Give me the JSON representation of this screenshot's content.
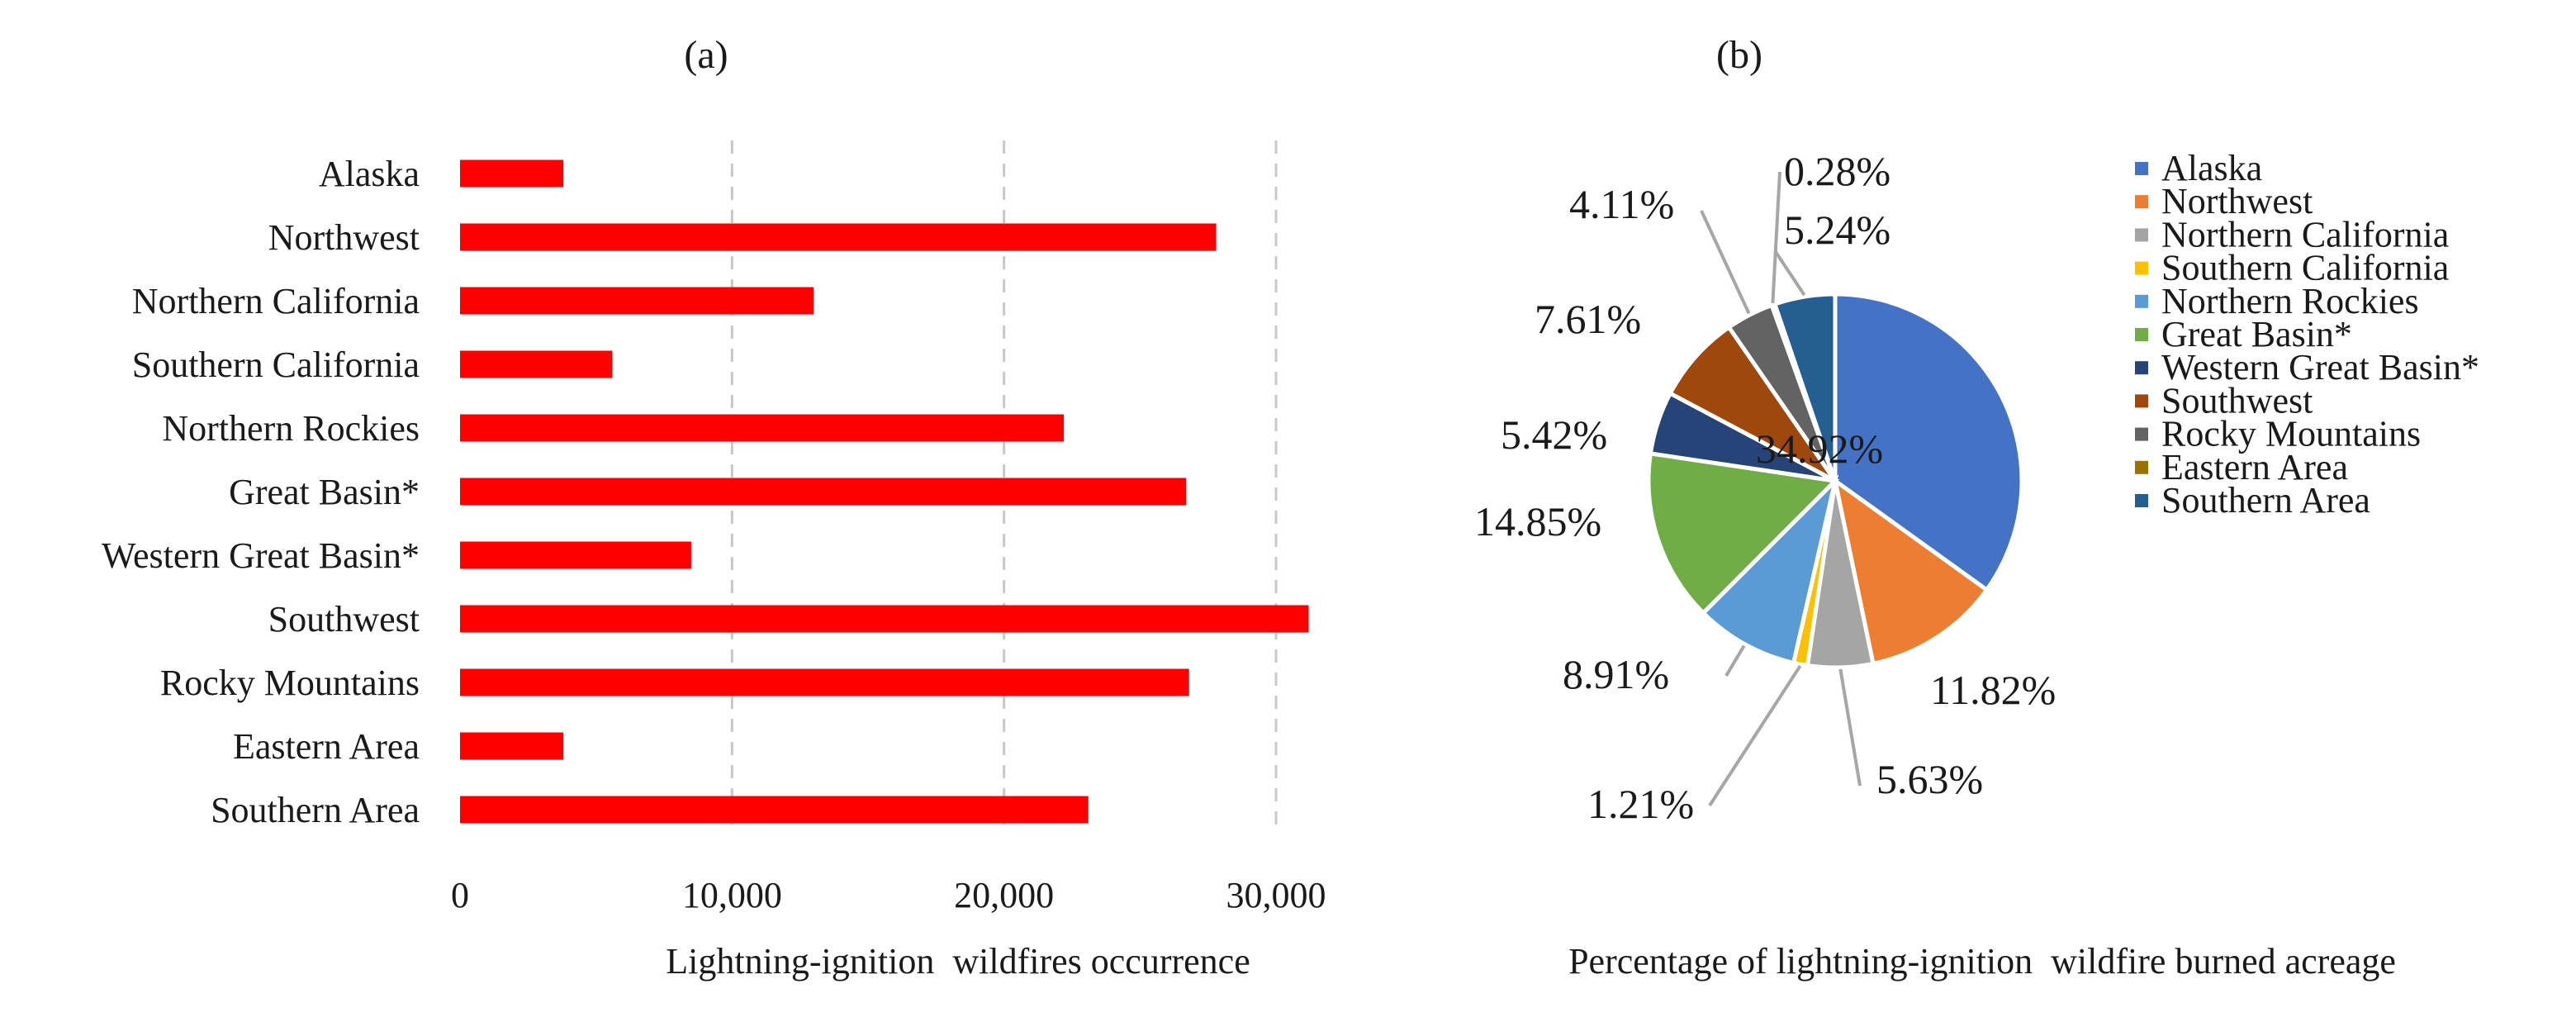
{
  "chart_data": [
    {
      "panel": "(a)",
      "type": "bar",
      "orientation": "horizontal",
      "categories": [
        "Alaska",
        "Northwest",
        "Northern California",
        "Southern California",
        "Northern Rockies",
        "Great Basin*",
        "Western Great Basin*",
        "Southwest",
        "Rocky Mountains",
        "Eastern Area",
        "Southern Area"
      ],
      "values": [
        3800,
        27800,
        13000,
        5600,
        22200,
        26700,
        8500,
        31200,
        26800,
        3800,
        23100
      ],
      "xlabel": "Lightning-ignition  wildfires occurrence",
      "xlim": [
        0,
        32000
      ],
      "xticks": [
        0,
        10000,
        20000,
        30000
      ],
      "xtick_labels": [
        "0",
        "10,000",
        "20,000",
        "30,000"
      ],
      "grid": "vertical dashed",
      "bar_color": "#ff0000"
    },
    {
      "panel": "(b)",
      "type": "pie",
      "xlabel": "Percentage of lightning-ignition  wildfire burned acreage",
      "slices": [
        {
          "label": "Alaska",
          "value": 34.92,
          "text": "34.92%",
          "color": "#4472c4"
        },
        {
          "label": "Northwest",
          "value": 11.82,
          "text": "11.82%",
          "color": "#ed7d31"
        },
        {
          "label": "Northern California",
          "value": 5.63,
          "text": "5.63%",
          "color": "#a5a5a5"
        },
        {
          "label": "Southern California",
          "value": 1.21,
          "text": "1.21%",
          "color": "#ffc000"
        },
        {
          "label": "Northern Rockies",
          "value": 8.91,
          "text": "8.91%",
          "color": "#5b9bd5"
        },
        {
          "label": "Great Basin*",
          "value": 14.85,
          "text": "14.85%",
          "color": "#70ad47"
        },
        {
          "label": "Western Great Basin*",
          "value": 5.42,
          "text": "5.42%",
          "color": "#264478"
        },
        {
          "label": "Southwest",
          "value": 7.61,
          "text": "7.61%",
          "color": "#9e480e"
        },
        {
          "label": "Rocky Mountains",
          "value": 4.11,
          "text": "4.11%",
          "color": "#636363"
        },
        {
          "label": "Eastern Area",
          "value": 0.28,
          "text": "0.28%",
          "color": "#997300"
        },
        {
          "label": "Southern Area",
          "value": 5.24,
          "text": "5.24%",
          "color": "#255e91"
        }
      ],
      "legend": "right"
    }
  ]
}
